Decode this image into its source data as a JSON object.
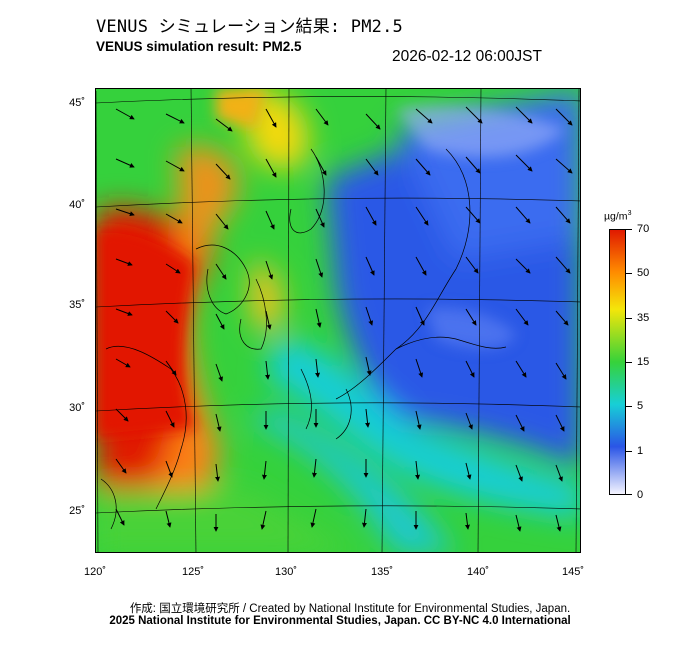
{
  "header": {
    "title_jp": "VENUS シミュレーション結果: PM2.5",
    "title_en": "VENUS simulation result: PM2.5",
    "timestamp": "2026-02-12 06:00JST"
  },
  "map": {
    "region": "East Asia / Japan",
    "field": "PM2.5 concentration with wind vectors",
    "lat_labels": [
      "45˚",
      "40˚",
      "35˚",
      "30˚",
      "25˚"
    ],
    "lon_labels": [
      "120˚",
      "125˚",
      "130˚",
      "135˚",
      "140˚",
      "145˚"
    ],
    "lat_values": [
      45,
      40,
      35,
      30,
      25
    ],
    "lon_values": [
      120,
      125,
      130,
      135,
      140,
      145
    ]
  },
  "colorbar": {
    "unit_label": "µg/m",
    "unit_sup": "3",
    "labels": [
      "70",
      "50",
      "35",
      "15",
      "5",
      "1",
      "0"
    ],
    "colors": {
      "high": "#e01a00",
      "orange": "#ff8c00",
      "yellow": "#f4e60a",
      "green": "#36d23a",
      "cyan": "#17cfd6",
      "blue": "#2a55e6",
      "pale": "#f4f4ff"
    }
  },
  "footer": {
    "credit_line1": "作成: 国立環境研究所 / Created by National Institute for Environmental Studies, Japan.",
    "credit_line2": "2025 National Institute for Environmental Studies, Japan. CC BY-NC 4.0 International"
  }
}
